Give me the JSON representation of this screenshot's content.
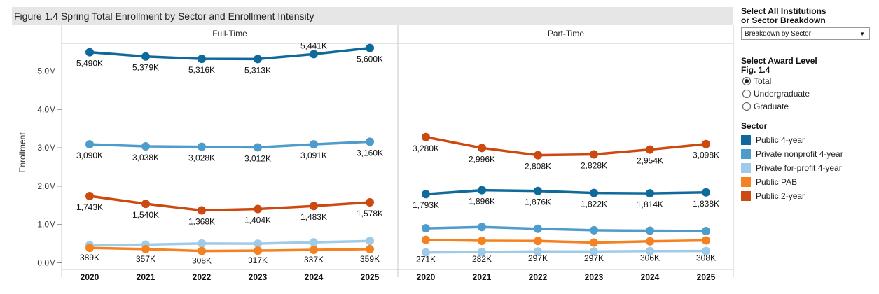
{
  "chart_data": {
    "type": "line",
    "title": "Figure 1.4 Spring Total Enrollment by Sector and Enrollment Intensity",
    "ylabel": "Enrollment",
    "ylim": [
      0,
      5800
    ],
    "y_ticks": [
      {
        "value": 0,
        "label": "0.0M"
      },
      {
        "value": 1000,
        "label": "1.0M"
      },
      {
        "value": 2000,
        "label": "2.0M"
      },
      {
        "value": 3000,
        "label": "3.0M"
      },
      {
        "value": 4000,
        "label": "4.0M"
      },
      {
        "value": 5000,
        "label": "5.0M"
      }
    ],
    "categories": [
      "2020",
      "2021",
      "2022",
      "2023",
      "2024",
      "2025"
    ],
    "panels": [
      {
        "name": "Full-Time",
        "series": [
          {
            "name": "Public 4-year",
            "values": [
              5490,
              5379,
              5316,
              5313,
              5441,
              5600
            ],
            "labels": [
              "5,490K",
              "5,379K",
              "5,316K",
              "5,313K",
              "5,441K",
              "5,600K"
            ]
          },
          {
            "name": "Private nonprofit 4-year",
            "values": [
              3090,
              3038,
              3028,
              3012,
              3091,
              3160
            ],
            "labels": [
              "3,090K",
              "3,038K",
              "3,028K",
              "3,012K",
              "3,091K",
              "3,160K"
            ]
          },
          {
            "name": "Private for-profit 4-year",
            "values": [
              460,
              475,
              505,
              500,
              535,
              570
            ],
            "labels": []
          },
          {
            "name": "Public PAB",
            "values": [
              389,
              357,
              308,
              317,
              337,
              359
            ],
            "labels": [
              "389K",
              "357K",
              "308K",
              "317K",
              "337K",
              "359K"
            ]
          },
          {
            "name": "Public 2-year",
            "values": [
              1743,
              1540,
              1368,
              1404,
              1483,
              1578
            ],
            "labels": [
              "1,743K",
              "1,540K",
              "1,368K",
              "1,404K",
              "1,483K",
              "1,578K"
            ]
          }
        ]
      },
      {
        "name": "Part-Time",
        "series": [
          {
            "name": "Public 4-year",
            "values": [
              1793,
              1896,
              1876,
              1822,
              1814,
              1838
            ],
            "labels": [
              "1,793K",
              "1,896K",
              "1,876K",
              "1,822K",
              "1,814K",
              "1,838K"
            ]
          },
          {
            "name": "Private nonprofit 4-year",
            "values": [
              900,
              935,
              890,
              850,
              840,
              830
            ],
            "labels": []
          },
          {
            "name": "Private for-profit 4-year",
            "values": [
              271,
              282,
              297,
              297,
              306,
              308
            ],
            "labels": [
              "271K",
              "282K",
              "297K",
              "297K",
              "306K",
              "308K"
            ]
          },
          {
            "name": "Public PAB",
            "values": [
              600,
              575,
              570,
              530,
              560,
              585
            ],
            "labels": []
          },
          {
            "name": "Public 2-year",
            "values": [
              3280,
              2996,
              2808,
              2828,
              2954,
              3098
            ],
            "labels": [
              "3,280K",
              "2,996K",
              "2,808K",
              "2,828K",
              "2,954K",
              "3,098K"
            ]
          }
        ]
      }
    ],
    "legend": [
      {
        "name": "Public 4-year",
        "color": "#0f6a9b"
      },
      {
        "name": "Private nonprofit 4-year",
        "color": "#4e9ccc"
      },
      {
        "name": "Private for-profit 4-year",
        "color": "#9fcbe9"
      },
      {
        "name": "Public PAB",
        "color": "#f58220"
      },
      {
        "name": "Public 2-year",
        "color": "#cc4a0f"
      }
    ]
  },
  "controls": {
    "institutions_title_line1": "Select All Institutions",
    "institutions_title_line2": "or Sector Breakdown",
    "breakdown_value": "Breakdown by Sector",
    "award_title_line1": "Select Award Level",
    "award_title_line2": "Fig. 1.4",
    "award_options": [
      "Total",
      "Undergraduate",
      "Graduate"
    ],
    "award_selected": "Total",
    "sector_title": "Sector"
  }
}
